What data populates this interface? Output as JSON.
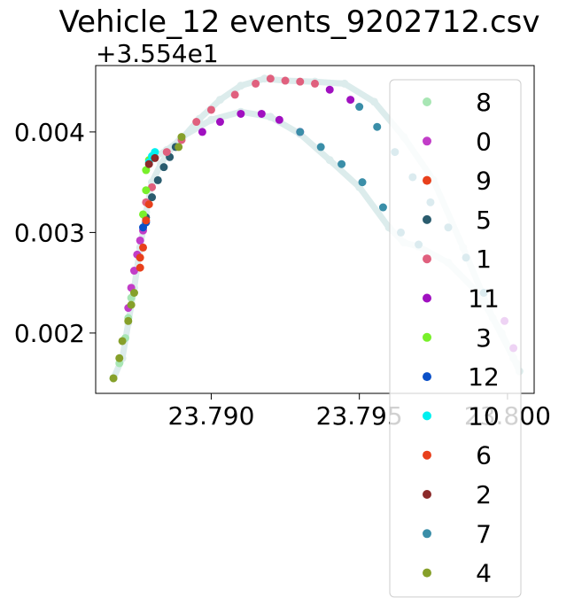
{
  "chart_data": {
    "type": "scatter",
    "title": "Vehicle_12 events_9202712.csv",
    "xlabel": "",
    "ylabel": "",
    "y_offset_label": "+3.554e1",
    "xlim": [
      23.7861,
      23.8009
    ],
    "ylim": [
      0.0014,
      0.00466
    ],
    "x_ticks": [
      23.79,
      23.795,
      23.8
    ],
    "x_tick_labels": [
      "23.790",
      "23.795",
      "23.800"
    ],
    "y_ticks": [
      0.002,
      0.003,
      0.004
    ],
    "y_tick_labels": [
      "0.002",
      "0.003",
      "0.004"
    ],
    "grid": false,
    "legend_placement": "right, extends below axes",
    "track": {
      "color": "#dcecec",
      "points": [
        [
          23.7867,
          0.00155
        ],
        [
          23.787,
          0.00175
        ],
        [
          23.7872,
          0.0021
        ],
        [
          23.7874,
          0.00245
        ],
        [
          23.7876,
          0.00285
        ],
        [
          23.7878,
          0.0032
        ],
        [
          23.788,
          0.0035
        ],
        [
          23.7883,
          0.00368
        ],
        [
          23.7886,
          0.00382
        ],
        [
          23.789,
          0.00395
        ],
        [
          23.79,
          0.00412
        ],
        [
          23.791,
          0.0042
        ],
        [
          23.792,
          0.00415
        ],
        [
          23.793,
          0.00398
        ],
        [
          23.794,
          0.00372
        ],
        [
          23.795,
          0.00345
        ],
        [
          23.796,
          0.00305
        ],
        [
          23.7965,
          0.0029
        ],
        [
          23.797,
          0.00286
        ],
        [
          23.798,
          0.0027
        ],
        [
          23.799,
          0.0024
        ],
        [
          23.7998,
          0.002
        ],
        [
          23.8003,
          0.0017
        ],
        [
          23.8004,
          0.00162
        ],
        [
          23.8002,
          0.00175
        ],
        [
          23.7995,
          0.00215
        ],
        [
          23.7985,
          0.00285
        ],
        [
          23.7975,
          0.00352
        ],
        [
          23.7965,
          0.00395
        ],
        [
          23.7955,
          0.0043
        ],
        [
          23.7945,
          0.00448
        ],
        [
          23.7935,
          0.0045
        ],
        [
          23.7925,
          0.00451
        ],
        [
          23.7918,
          0.00453
        ],
        [
          23.791,
          0.00446
        ],
        [
          23.7903,
          0.00432
        ],
        [
          23.7896,
          0.00413
        ],
        [
          23.789,
          0.00393
        ],
        [
          23.7885,
          0.00382
        ],
        [
          23.7881,
          0.00375
        ]
      ]
    },
    "series": [
      {
        "name": "8",
        "color": "#a8e6b4",
        "points": [
          [
            23.7867,
            0.00155
          ],
          [
            23.7869,
            0.0017
          ],
          [
            23.7871,
            0.00195
          ],
          [
            23.7872,
            0.00215
          ],
          [
            23.7873,
            0.00235
          ]
        ]
      },
      {
        "name": "0",
        "color": "#c23dc8",
        "points": [
          [
            23.7872,
            0.00225
          ],
          [
            23.7873,
            0.00245
          ],
          [
            23.7874,
            0.00262
          ],
          [
            23.7875,
            0.00278
          ],
          [
            23.7876,
            0.00292
          ],
          [
            23.7877,
            0.00302
          ]
        ]
      },
      {
        "name": "9",
        "color": "#e8401c",
        "points": [
          [
            23.7876,
            0.00265
          ],
          [
            23.7876,
            0.00275
          ],
          [
            23.7877,
            0.00285
          ]
        ]
      },
      {
        "name": "5",
        "color": "#2a5c6e",
        "points": [
          [
            23.7878,
            0.00315
          ],
          [
            23.788,
            0.00335
          ],
          [
            23.7882,
            0.00352
          ],
          [
            23.7884,
            0.00365
          ],
          [
            23.7886,
            0.00375
          ],
          [
            23.7888,
            0.00385
          ]
        ]
      },
      {
        "name": "1",
        "color": "#e0607e",
        "points": [
          [
            23.7878,
            0.0033
          ],
          [
            23.788,
            0.00345
          ],
          [
            23.7885,
            0.0038
          ],
          [
            23.789,
            0.00392
          ],
          [
            23.7895,
            0.0041
          ],
          [
            23.79,
            0.00422
          ],
          [
            23.7908,
            0.00437
          ],
          [
            23.7915,
            0.00448
          ],
          [
            23.792,
            0.00453
          ],
          [
            23.7925,
            0.00451
          ],
          [
            23.793,
            0.0045
          ],
          [
            23.7935,
            0.00448
          ]
        ]
      },
      {
        "name": "11",
        "color": "#a010c0",
        "points": [
          [
            23.7897,
            0.004
          ],
          [
            23.7903,
            0.0041
          ],
          [
            23.791,
            0.00418
          ],
          [
            23.7917,
            0.00418
          ],
          [
            23.7923,
            0.00412
          ],
          [
            23.793,
            0.004
          ],
          [
            23.794,
            0.00442
          ],
          [
            23.7947,
            0.00432
          ],
          [
            23.7999,
            0.00212
          ],
          [
            23.8002,
            0.00185
          ]
        ]
      },
      {
        "name": "3",
        "color": "#78f02a",
        "points": [
          [
            23.7877,
            0.00318
          ],
          [
            23.7878,
            0.00342
          ],
          [
            23.7878,
            0.00362
          ],
          [
            23.7879,
            0.00372
          ]
        ]
      },
      {
        "name": "12",
        "color": "#0a50c8",
        "points": [
          [
            23.7877,
            0.00305
          ],
          [
            23.7878,
            0.0031
          ]
        ]
      },
      {
        "name": "10",
        "color": "#00f0f0",
        "points": [
          [
            23.7879,
            0.0037
          ],
          [
            23.788,
            0.00376
          ],
          [
            23.7881,
            0.0038
          ]
        ]
      },
      {
        "name": "6",
        "color": "#e8401c",
        "points": [
          [
            23.7878,
            0.00312
          ],
          [
            23.7879,
            0.00328
          ]
        ]
      },
      {
        "name": "2",
        "color": "#8b2a2a",
        "points": [
          [
            23.7879,
            0.00368
          ],
          [
            23.7881,
            0.00374
          ]
        ]
      },
      {
        "name": "7",
        "color": "#3a8ea8",
        "points": [
          [
            23.793,
            0.004
          ],
          [
            23.7937,
            0.00385
          ],
          [
            23.7944,
            0.00368
          ],
          [
            23.7951,
            0.0035
          ],
          [
            23.7958,
            0.00325
          ],
          [
            23.7964,
            0.003
          ],
          [
            23.797,
            0.00288
          ],
          [
            23.795,
            0.00425
          ],
          [
            23.7956,
            0.00405
          ],
          [
            23.7962,
            0.0038
          ],
          [
            23.7968,
            0.00355
          ],
          [
            23.7974,
            0.0033
          ],
          [
            23.798,
            0.00305
          ],
          [
            23.7986,
            0.00275
          ],
          [
            23.7992,
            0.0024
          ]
        ]
      },
      {
        "name": "4",
        "color": "#86a02a",
        "points": [
          [
            23.7867,
            0.00155
          ],
          [
            23.7869,
            0.00175
          ],
          [
            23.787,
            0.00192
          ],
          [
            23.7872,
            0.00212
          ],
          [
            23.7873,
            0.00228
          ],
          [
            23.7874,
            0.0024
          ],
          [
            23.7889,
            0.00385
          ],
          [
            23.789,
            0.00395
          ]
        ]
      }
    ]
  }
}
